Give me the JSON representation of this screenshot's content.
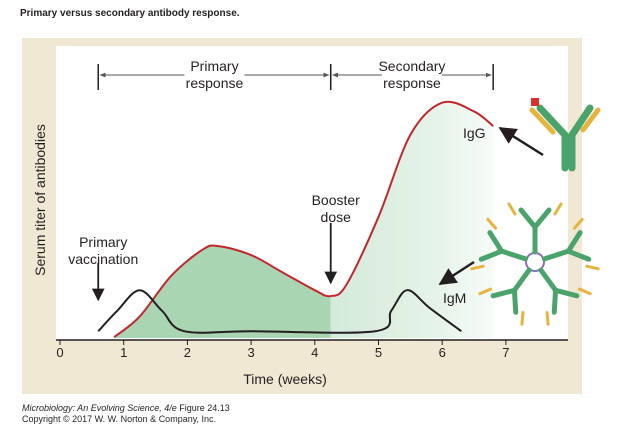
{
  "title": "Primary versus secondary antibody response.",
  "chart_data": {
    "type": "line",
    "xlabel": "Time (weeks)",
    "ylabel": "Serum titer of antibodies",
    "xlim": [
      0,
      8
    ],
    "xticks": [
      0,
      1,
      2,
      3,
      4,
      5,
      6,
      7
    ],
    "ylim": [
      0,
      100
    ],
    "series": [
      {
        "name": "IgG",
        "color": "#c1272d",
        "x": [
          0.85,
          1.25,
          1.75,
          2.25,
          2.5,
          3,
          3.5,
          4,
          4.25,
          4.5,
          5,
          5.5,
          6,
          6.5,
          6.8
        ],
        "values": [
          1,
          8,
          22,
          31,
          32,
          29,
          23,
          17,
          15,
          19,
          42,
          70,
          81,
          78,
          73
        ]
      },
      {
        "name": "IgM",
        "color": "#231f20",
        "x": [
          0.6,
          0.9,
          1.25,
          1.6,
          1.95,
          3,
          4.95,
          5.2,
          5.45,
          5.8,
          6.3
        ],
        "values": [
          3,
          10,
          17,
          10,
          3,
          3,
          3,
          10,
          17,
          11,
          3
        ]
      }
    ],
    "annotations": [
      {
        "text": "Primary vaccination",
        "x": 0.6
      },
      {
        "text": "Booster dose",
        "x": 4.25
      }
    ],
    "periods": [
      {
        "label": "Primary response",
        "start": 0.6,
        "end": 4.25
      },
      {
        "label": "Secondary response",
        "start": 4.25,
        "end": 6.8
      }
    ]
  },
  "credit": {
    "source_title": "Microbiology: An Evolving Science, 4/e",
    "figure": "Figure 24.13",
    "copyright": "Copyright © 2017 W. W. Norton & Company, Inc."
  }
}
